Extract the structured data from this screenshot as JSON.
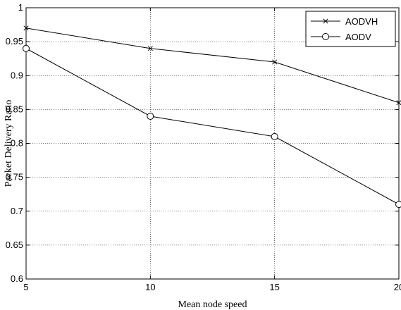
{
  "chart_data": {
    "type": "line",
    "title": "",
    "xlabel": "Mean node speed",
    "ylabel": "Packet Delivery Ratio",
    "xlim": [
      5,
      20
    ],
    "ylim": [
      0.6,
      1
    ],
    "x_ticks": [
      "5",
      "10",
      "15",
      "20"
    ],
    "y_ticks": [
      "0.6",
      "0.65",
      "0.7",
      "0.75",
      "0.8",
      "0.85",
      "0.9",
      "0.95",
      "1"
    ],
    "grid": true,
    "legend_position": "top-right",
    "x": [
      5,
      10,
      15,
      20
    ],
    "series": [
      {
        "name": "AODVH",
        "marker": "x",
        "color": "#000000",
        "values": [
          0.97,
          0.94,
          0.92,
          0.86
        ]
      },
      {
        "name": "AODV",
        "marker": "circle",
        "color": "#000000",
        "values": [
          0.94,
          0.84,
          0.81,
          0.71
        ]
      }
    ]
  }
}
